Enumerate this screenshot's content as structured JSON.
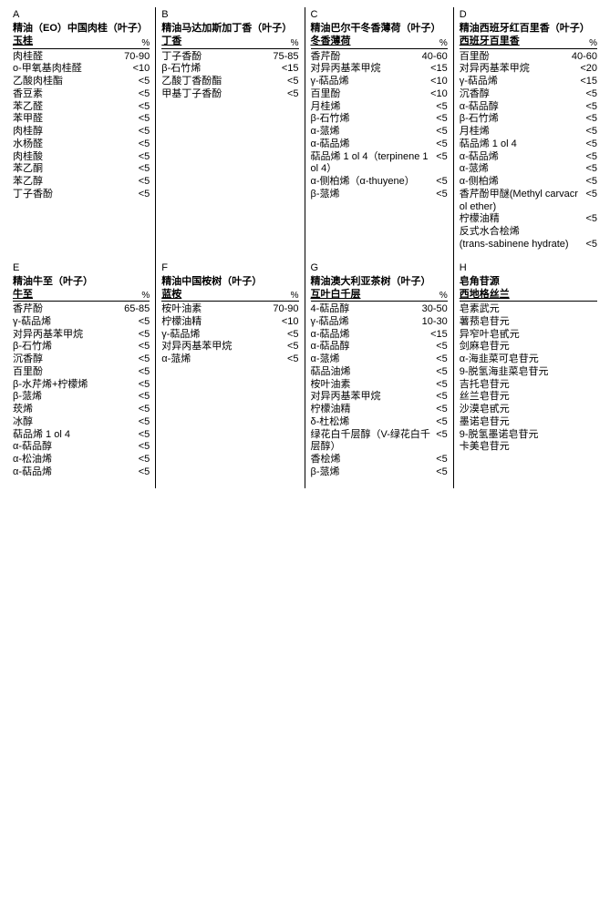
{
  "panels": [
    {
      "letter": "A",
      "title": "精油（EO）中国肉桂（叶子）",
      "subtitle": "玉桂",
      "rows": [
        {
          "name": "肉桂醛",
          "val": "70-90"
        },
        {
          "name": "o-甲氧基肉桂醛",
          "val": "<10"
        },
        {
          "name": "乙酸肉桂酯",
          "val": "<5"
        },
        {
          "name": "香豆素",
          "val": "<5"
        },
        {
          "name": "苯乙醛",
          "val": "<5"
        },
        {
          "name": "苯甲醛",
          "val": "<5"
        },
        {
          "name": "肉桂醇",
          "val": "<5"
        },
        {
          "name": "水杨醛",
          "val": "<5"
        },
        {
          "name": "肉桂酸",
          "val": "<5"
        },
        {
          "name": "苯乙酮",
          "val": "<5"
        },
        {
          "name": "苯乙醇",
          "val": "<5"
        },
        {
          "name": "丁子香酚",
          "val": "<5"
        }
      ]
    },
    {
      "letter": "B",
      "title": "精油马达加斯加丁香（叶子）",
      "subtitle": "丁香",
      "rows": [
        {
          "name": "丁子香酚",
          "val": "75-85"
        },
        {
          "name": "β-石竹烯",
          "val": "<15"
        },
        {
          "name": "乙酸丁香酚酯",
          "val": "<5"
        },
        {
          "name": "甲基丁子香酚",
          "val": "<5"
        }
      ]
    },
    {
      "letter": "C",
      "title": "精油巴尔干冬香薄荷（叶子）",
      "subtitle": "冬香薄荷",
      "rows": [
        {
          "name": "香芹酚",
          "val": "40-60"
        },
        {
          "name": "对异丙基苯甲烷",
          "val": "<15"
        },
        {
          "name": "γ-萜品烯",
          "val": "<10"
        },
        {
          "name": "百里酚",
          "val": "<10"
        },
        {
          "name": "月桂烯",
          "val": "<5"
        },
        {
          "name": "β-石竹烯",
          "val": "<5"
        },
        {
          "name": "α-蒎烯",
          "val": "<5"
        },
        {
          "name": "α-萜品烯",
          "val": "<5"
        },
        {
          "name": "萜品烯 1 ol 4（terpinene 1 ol 4）",
          "val": "<5"
        },
        {
          "name": "α-侧柏烯（α-thuyene）",
          "val": "<5"
        },
        {
          "name": "β-蒎烯",
          "val": "<5"
        }
      ]
    },
    {
      "letter": "D",
      "title": "精油西班牙红百里香（叶子）",
      "subtitle": "西班牙百里香",
      "rows": [
        {
          "name": "百里酚",
          "val": "40-60"
        },
        {
          "name": "对异丙基苯甲烷",
          "val": "<20"
        },
        {
          "name": "γ-萜品烯",
          "val": "<15"
        },
        {
          "name": "沉香醇",
          "val": "<5"
        },
        {
          "name": "α-萜品醇",
          "val": "<5"
        },
        {
          "name": "β-石竹烯",
          "val": "<5"
        },
        {
          "name": "月桂烯",
          "val": "<5"
        },
        {
          "name": "萜品烯 1 ol 4",
          "val": "<5"
        },
        {
          "name": "α-萜品烯",
          "val": "<5"
        },
        {
          "name": "α-蒎烯",
          "val": "<5"
        },
        {
          "name": "α-侧柏烯",
          "val": "<5"
        },
        {
          "name": "香芹酚甲醚(Methyl carvacrol ether)",
          "val": "<5"
        },
        {
          "name": "柠檬油精",
          "val": "<5"
        },
        {
          "name": "反式水合桧烯",
          "val": ""
        },
        {
          "name": "(trans-sabinene hydrate)",
          "val": "<5"
        }
      ]
    },
    {
      "letter": "E",
      "title": "精油牛至（叶子）",
      "subtitle": "牛至",
      "rows": [
        {
          "name": "香芹酚",
          "val": "65-85"
        },
        {
          "name": "γ-萜品烯",
          "val": "<5"
        },
        {
          "name": "对异丙基苯甲烷",
          "val": "<5"
        },
        {
          "name": "β-石竹烯",
          "val": "<5"
        },
        {
          "name": "沉香醇",
          "val": "<5"
        },
        {
          "name": "百里酚",
          "val": "<5"
        },
        {
          "name": "β-水芹烯+柠檬烯",
          "val": "<5"
        },
        {
          "name": "β-蒎烯",
          "val": "<5"
        },
        {
          "name": "莰烯",
          "val": "<5"
        },
        {
          "name": "冰醇",
          "val": "<5"
        },
        {
          "name": "萜品烯 1 ol 4",
          "val": "<5"
        },
        {
          "name": "α-萜品醇",
          "val": "<5"
        },
        {
          "name": "α-松油烯",
          "val": "<5"
        },
        {
          "name": "α-萜品烯",
          "val": "<5"
        }
      ]
    },
    {
      "letter": "F",
      "title": "精油中国桉树（叶子）",
      "subtitle": "蓝桉",
      "rows": [
        {
          "name": "桉叶油素",
          "val": "70-90"
        },
        {
          "name": "柠檬油精",
          "val": "<10"
        },
        {
          "name": "γ-萜品烯",
          "val": "<5"
        },
        {
          "name": "对异丙基苯甲烷",
          "val": "<5"
        },
        {
          "name": "α-蒎烯",
          "val": "<5"
        }
      ]
    },
    {
      "letter": "G",
      "title": "精油澳大利亚茶树（叶子）",
      "subtitle": "互叶白千层",
      "rows": [
        {
          "name": "4-萜品醇",
          "val": "30-50"
        },
        {
          "name": "γ-萜品烯",
          "val": "10-30"
        },
        {
          "name": "α-萜品烯",
          "val": "<15"
        },
        {
          "name": "α-萜品醇",
          "val": "<5"
        },
        {
          "name": "α-蒎烯",
          "val": "<5"
        },
        {
          "name": "萜品油烯",
          "val": "<5"
        },
        {
          "name": "桉叶油素",
          "val": "<5"
        },
        {
          "name": "对异丙基苯甲烷",
          "val": "<5"
        },
        {
          "name": "柠檬油精",
          "val": "<5"
        },
        {
          "name": "δ-杜松烯",
          "val": "<5"
        },
        {
          "name": "绿花白千层醇（V-绿花白千层醇）",
          "val": "<5"
        },
        {
          "name": "香桧烯",
          "val": "<5"
        },
        {
          "name": "β-蒎烯",
          "val": "<5"
        }
      ]
    },
    {
      "letter": "H",
      "title": "皂角苷源",
      "subtitle": "西地格丝兰",
      "saponin": true,
      "rows": [
        {
          "name": "皂素武元",
          "val": ""
        },
        {
          "name": "薯蓣皂苷元",
          "val": ""
        },
        {
          "name": "异窄叶皂甙元",
          "val": ""
        },
        {
          "name": "剑麻皂苷元",
          "val": ""
        },
        {
          "name": "α-海韭菜可皂苷元",
          "val": ""
        },
        {
          "name": "9-脱氢海韭菜皂苷元",
          "val": ""
        },
        {
          "name": "吉托皂苷元",
          "val": ""
        },
        {
          "name": "丝兰皂苷元",
          "val": ""
        },
        {
          "name": "沙漠皂甙元",
          "val": ""
        },
        {
          "name": "墨诺皂苷元",
          "val": ""
        },
        {
          "name": "9-脱氢墨诺皂苷元",
          "val": ""
        },
        {
          "name": "卡美皂苷元",
          "val": ""
        }
      ]
    }
  ]
}
